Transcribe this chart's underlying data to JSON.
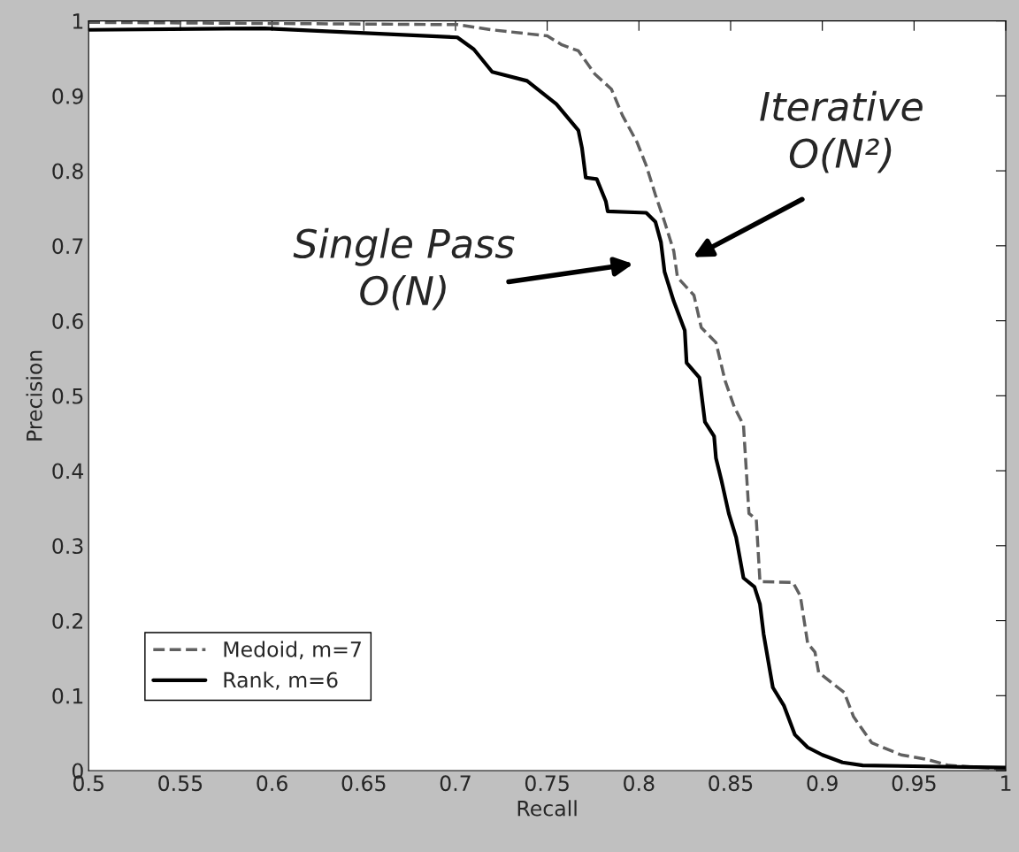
{
  "chart_data": {
    "type": "line",
    "xlabel": "Recall",
    "ylabel": "Precision",
    "xlim": [
      0.5,
      1
    ],
    "ylim": [
      0,
      1
    ],
    "xticks": [
      0.5,
      0.55,
      0.6,
      0.65,
      0.7,
      0.75,
      0.8,
      0.85,
      0.9,
      0.95,
      1
    ],
    "yticks": [
      0,
      0.1,
      0.2,
      0.3,
      0.4,
      0.5,
      0.6,
      0.7,
      0.8,
      0.9,
      1
    ],
    "grid": false,
    "legend": "bottom left",
    "marker": "none",
    "series": [
      {
        "name": "Medoid, m=7",
        "color": "#606060",
        "line_style": "dashed",
        "x": [
          0.5,
          0.701,
          0.72,
          0.75,
          0.758,
          0.767,
          0.776,
          0.785,
          0.791,
          0.799,
          0.804,
          0.809,
          0.814,
          0.819,
          0.821,
          0.83,
          0.834,
          0.842,
          0.847,
          0.852,
          0.857,
          0.86,
          0.864,
          0.866,
          0.884,
          0.888,
          0.892,
          0.896,
          0.898,
          0.912,
          0.917,
          0.927,
          0.943,
          0.957,
          0.969,
          1.0
        ],
        "values": [
          0.998,
          0.995,
          0.988,
          0.98,
          0.968,
          0.96,
          0.929,
          0.909,
          0.874,
          0.838,
          0.807,
          0.768,
          0.732,
          0.693,
          0.658,
          0.634,
          0.591,
          0.571,
          0.52,
          0.485,
          0.461,
          0.343,
          0.335,
          0.252,
          0.251,
          0.233,
          0.17,
          0.158,
          0.131,
          0.104,
          0.072,
          0.037,
          0.021,
          0.015,
          0.007,
          0.002
        ]
      },
      {
        "name": "Rank, m=6",
        "color": "#000000",
        "line_style": "solid",
        "x": [
          0.5,
          0.596,
          0.701,
          0.71,
          0.72,
          0.739,
          0.755,
          0.767,
          0.769,
          0.771,
          0.777,
          0.782,
          0.783,
          0.804,
          0.809,
          0.812,
          0.814,
          0.819,
          0.825,
          0.826,
          0.833,
          0.836,
          0.841,
          0.842,
          0.845,
          0.849,
          0.853,
          0.857,
          0.863,
          0.866,
          0.868,
          0.873,
          0.879,
          0.885,
          0.892,
          0.9,
          0.911,
          0.922,
          1.0
        ],
        "values": [
          0.988,
          0.99,
          0.978,
          0.962,
          0.932,
          0.92,
          0.889,
          0.854,
          0.83,
          0.791,
          0.789,
          0.759,
          0.746,
          0.744,
          0.732,
          0.705,
          0.665,
          0.626,
          0.587,
          0.544,
          0.524,
          0.465,
          0.446,
          0.417,
          0.387,
          0.343,
          0.311,
          0.257,
          0.245,
          0.222,
          0.182,
          0.111,
          0.087,
          0.048,
          0.031,
          0.021,
          0.011,
          0.007,
          0.004
        ]
      }
    ],
    "annotations": [
      "Single Pass\nO(N)",
      "Iterative\nO(N²)"
    ]
  }
}
